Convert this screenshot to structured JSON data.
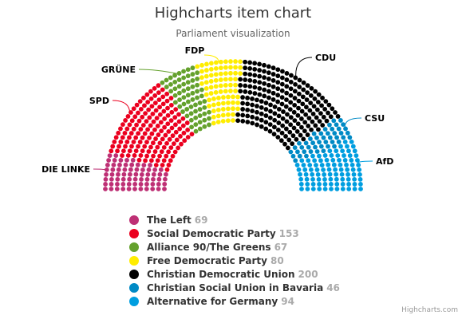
{
  "chart_data": {
    "type": "item",
    "layout": "parliament-semicircle",
    "title": "Highcharts item chart",
    "subtitle": "Parliament visualization",
    "legend_position": "bottom",
    "series": [
      {
        "name": "The Left",
        "label": "DIE LINKE",
        "value": 69,
        "color": "#BE3075"
      },
      {
        "name": "Social Democratic Party",
        "label": "SPD",
        "value": 153,
        "color": "#EB001F"
      },
      {
        "name": "Alliance 90/The Greens",
        "label": "GRÜNE",
        "value": 67,
        "color": "#64A12D"
      },
      {
        "name": "Free Democratic Party",
        "label": "FDP",
        "value": 80,
        "color": "#FFED00"
      },
      {
        "name": "Christian Democratic Union",
        "label": "CDU",
        "value": 200,
        "color": "#000000"
      },
      {
        "name": "Christian Social Union in Bavaria",
        "label": "CSU",
        "value": 46,
        "color": "#008AC5"
      },
      {
        "name": "Alternative for Germany",
        "label": "AfD",
        "value": 94,
        "color": "#009EE0"
      }
    ]
  },
  "credits": "Highcharts.com"
}
